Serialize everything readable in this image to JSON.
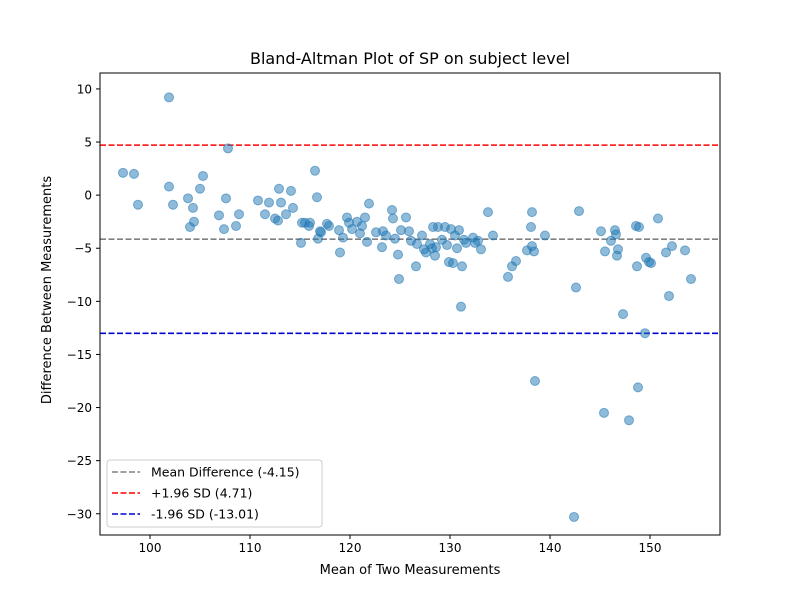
{
  "chart_data": {
    "type": "scatter",
    "title": "Bland-Altman Plot of SP on subject level",
    "xlabel": "Mean of Two Measurements",
    "ylabel": "Difference Between Measurements",
    "xlim": [
      95,
      157
    ],
    "ylim": [
      -32,
      11.5
    ],
    "xticks": [
      100,
      110,
      120,
      130,
      140,
      150
    ],
    "yticks": [
      10,
      5,
      0,
      -5,
      -10,
      -15,
      -20,
      -25,
      -30
    ],
    "grid": false,
    "legend_position": "lower-left",
    "point_color": "#1f77b4",
    "lines": [
      {
        "label": "Mean Difference (-4.15)",
        "y": -4.15,
        "color": "#808080"
      },
      {
        "label": "+1.96 SD (4.71)",
        "y": 4.71,
        "color": "#ff0000"
      },
      {
        "label": "-1.96 SD (-13.01)",
        "y": -13.01,
        "color": "#0000cd"
      }
    ],
    "series": [
      {
        "points": [
          [
            97.3,
            2.1
          ],
          [
            98.4,
            2.0
          ],
          [
            98.8,
            -0.9
          ],
          [
            101.9,
            9.2
          ],
          [
            101.9,
            0.8
          ],
          [
            102.3,
            -0.9
          ],
          [
            103.8,
            -0.3
          ],
          [
            104.0,
            -3.0
          ],
          [
            104.3,
            -1.2
          ],
          [
            104.4,
            -2.5
          ],
          [
            105.0,
            0.6
          ],
          [
            105.3,
            1.8
          ],
          [
            106.9,
            -1.9
          ],
          [
            107.4,
            -3.2
          ],
          [
            107.6,
            -0.3
          ],
          [
            107.8,
            4.4
          ],
          [
            108.6,
            -2.9
          ],
          [
            108.9,
            -1.8
          ],
          [
            110.8,
            -0.5
          ],
          [
            111.5,
            -1.8
          ],
          [
            111.9,
            -0.7
          ],
          [
            112.5,
            -2.2
          ],
          [
            112.8,
            -2.4
          ],
          [
            112.9,
            0.6
          ],
          [
            113.1,
            -0.7
          ],
          [
            113.6,
            -1.8
          ],
          [
            114.1,
            0.4
          ],
          [
            114.3,
            -1.2
          ],
          [
            115.1,
            -4.5
          ],
          [
            115.2,
            -2.6
          ],
          [
            115.5,
            -2.6
          ],
          [
            115.9,
            -2.9
          ],
          [
            116.0,
            -2.6
          ],
          [
            116.5,
            2.3
          ],
          [
            116.7,
            -0.2
          ],
          [
            116.8,
            -4.1
          ],
          [
            117.0,
            -3.4
          ],
          [
            117.1,
            -3.5
          ],
          [
            117.7,
            -2.7
          ],
          [
            117.9,
            -2.9
          ],
          [
            118.9,
            -3.3
          ],
          [
            119.0,
            -5.4
          ],
          [
            119.3,
            -4.0
          ],
          [
            119.7,
            -2.1
          ],
          [
            119.9,
            -2.6
          ],
          [
            120.2,
            -3.2
          ],
          [
            120.7,
            -2.5
          ],
          [
            121.0,
            -3.6
          ],
          [
            121.2,
            -2.9
          ],
          [
            121.5,
            -2.1
          ],
          [
            121.7,
            -4.4
          ],
          [
            121.9,
            -0.8
          ],
          [
            122.6,
            -3.5
          ],
          [
            123.2,
            -4.9
          ],
          [
            123.3,
            -3.4
          ],
          [
            123.6,
            -3.8
          ],
          [
            124.2,
            -1.4
          ],
          [
            124.3,
            -2.2
          ],
          [
            124.5,
            -4.1
          ],
          [
            124.8,
            -5.6
          ],
          [
            124.9,
            -7.9
          ],
          [
            125.1,
            -3.3
          ],
          [
            125.6,
            -2.1
          ],
          [
            125.9,
            -3.4
          ],
          [
            126.1,
            -4.3
          ],
          [
            126.6,
            -6.7
          ],
          [
            126.7,
            -4.6
          ],
          [
            127.2,
            -3.8
          ],
          [
            127.4,
            -5.1
          ],
          [
            127.6,
            -5.4
          ],
          [
            128.0,
            -4.6
          ],
          [
            128.2,
            -5.0
          ],
          [
            128.3,
            -3.0
          ],
          [
            128.5,
            -5.7
          ],
          [
            128.6,
            -4.9
          ],
          [
            128.8,
            -3.0
          ],
          [
            129.2,
            -4.2
          ],
          [
            129.5,
            -3.0
          ],
          [
            129.7,
            -4.7
          ],
          [
            129.9,
            -6.3
          ],
          [
            130.1,
            -3.2
          ],
          [
            130.3,
            -6.4
          ],
          [
            130.5,
            -3.8
          ],
          [
            130.7,
            -5.0
          ],
          [
            130.9,
            -3.3
          ],
          [
            131.1,
            -10.5
          ],
          [
            131.2,
            -6.7
          ],
          [
            131.4,
            -4.2
          ],
          [
            131.6,
            -4.5
          ],
          [
            132.3,
            -4.0
          ],
          [
            132.5,
            -4.5
          ],
          [
            132.8,
            -4.3
          ],
          [
            133.1,
            -5.1
          ],
          [
            133.8,
            -1.6
          ],
          [
            134.3,
            -3.8
          ],
          [
            135.8,
            -7.7
          ],
          [
            136.2,
            -6.7
          ],
          [
            136.6,
            -6.2
          ],
          [
            137.7,
            -5.2
          ],
          [
            138.1,
            -3.0
          ],
          [
            138.2,
            -1.6
          ],
          [
            138.2,
            -4.8
          ],
          [
            138.4,
            -5.3
          ],
          [
            138.5,
            -17.5
          ],
          [
            139.5,
            -3.8
          ],
          [
            142.4,
            -30.3
          ],
          [
            142.6,
            -8.7
          ],
          [
            142.9,
            -1.5
          ],
          [
            145.1,
            -3.4
          ],
          [
            145.4,
            -20.5
          ],
          [
            145.5,
            -5.3
          ],
          [
            146.1,
            -4.3
          ],
          [
            146.5,
            -3.3
          ],
          [
            146.6,
            -3.7
          ],
          [
            146.7,
            -5.7
          ],
          [
            146.8,
            -5.1
          ],
          [
            147.3,
            -11.2
          ],
          [
            147.9,
            -21.2
          ],
          [
            148.6,
            -2.9
          ],
          [
            148.7,
            -6.7
          ],
          [
            148.8,
            -18.1
          ],
          [
            148.9,
            -3.0
          ],
          [
            149.5,
            -13.0
          ],
          [
            149.6,
            -5.9
          ],
          [
            149.9,
            -6.3
          ],
          [
            150.1,
            -6.4
          ],
          [
            150.8,
            -2.2
          ],
          [
            151.6,
            -5.4
          ],
          [
            151.9,
            -9.5
          ],
          [
            152.2,
            -4.8
          ],
          [
            153.5,
            -5.2
          ],
          [
            154.1,
            -7.9
          ]
        ]
      }
    ]
  }
}
